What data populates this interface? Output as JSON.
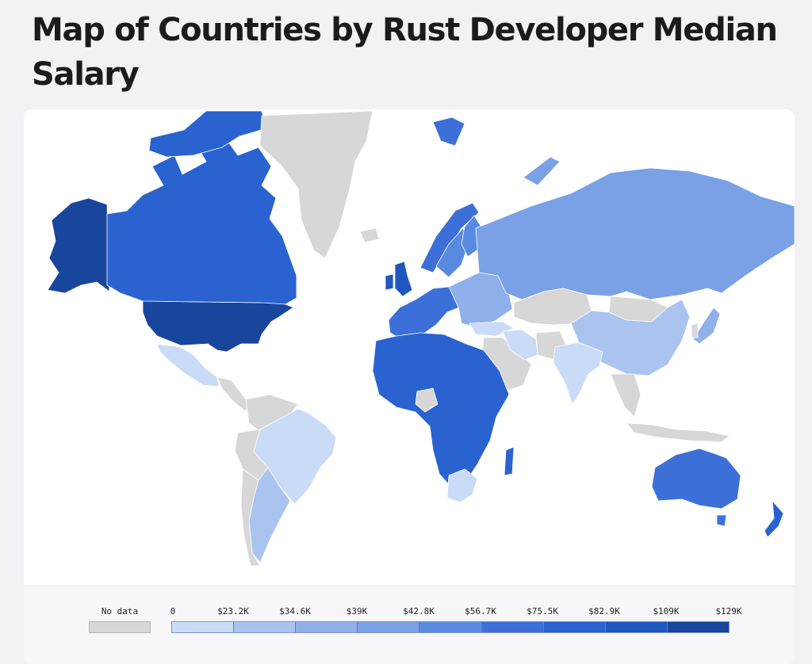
{
  "title": "Map of Countries by Rust Developer Median Salary",
  "legend": {
    "no_data_label": "No data",
    "no_data_color": "#d7d7d7",
    "ticks": [
      "0",
      "$23.2K",
      "$34.6K",
      "$39K",
      "$42.8K",
      "$56.7K",
      "$75.5K",
      "$82.9K",
      "$109K",
      "$129K"
    ],
    "colors": [
      "#c9dbf6",
      "#aac4ef",
      "#8fb0ea",
      "#7aa1e6",
      "#5a8ae0",
      "#3c70d8",
      "#2a63cf",
      "#1f57be",
      "#19469d"
    ]
  },
  "map_data": {
    "type": "choropleth",
    "metric": "Rust developer median salary",
    "countries": [
      {
        "name": "Alaska (United States)",
        "color": "#19469d"
      },
      {
        "name": "United States",
        "color": "#19469d"
      },
      {
        "name": "Canada",
        "color": "#2a63cf"
      },
      {
        "name": "Greenland",
        "color": "#d7d7d7"
      },
      {
        "name": "Mexico",
        "color": "#c9dbf6"
      },
      {
        "name": "Brazil",
        "color": "#c9dbf6"
      },
      {
        "name": "Argentina",
        "color": "#aac4ef"
      },
      {
        "name": "United Kingdom",
        "color": "#1f57be"
      },
      {
        "name": "Norway",
        "color": "#3c70d8"
      },
      {
        "name": "Sweden",
        "color": "#5a8ae0"
      },
      {
        "name": "Finland",
        "color": "#5a8ae0"
      },
      {
        "name": "Western Europe",
        "color": "#3c70d8"
      },
      {
        "name": "Eastern Europe",
        "color": "#8fb0ea"
      },
      {
        "name": "Russia",
        "color": "#7aa1e6"
      },
      {
        "name": "Kazakhstan",
        "color": "#d7d7d7"
      },
      {
        "name": "China",
        "color": "#aac4ef"
      },
      {
        "name": "India",
        "color": "#c9dbf6"
      },
      {
        "name": "Iran",
        "color": "#8fb0ea"
      },
      {
        "name": "Japan",
        "color": "#2a63cf"
      },
      {
        "name": "Africa",
        "color": "#d7d7d7"
      },
      {
        "name": "Nigeria",
        "color": "#c9dbf6"
      },
      {
        "name": "South Africa",
        "color": "#3c70d8"
      },
      {
        "name": "Australia",
        "color": "#2a63cf"
      },
      {
        "name": "New Zealand",
        "color": "#2a63cf"
      }
    ]
  }
}
